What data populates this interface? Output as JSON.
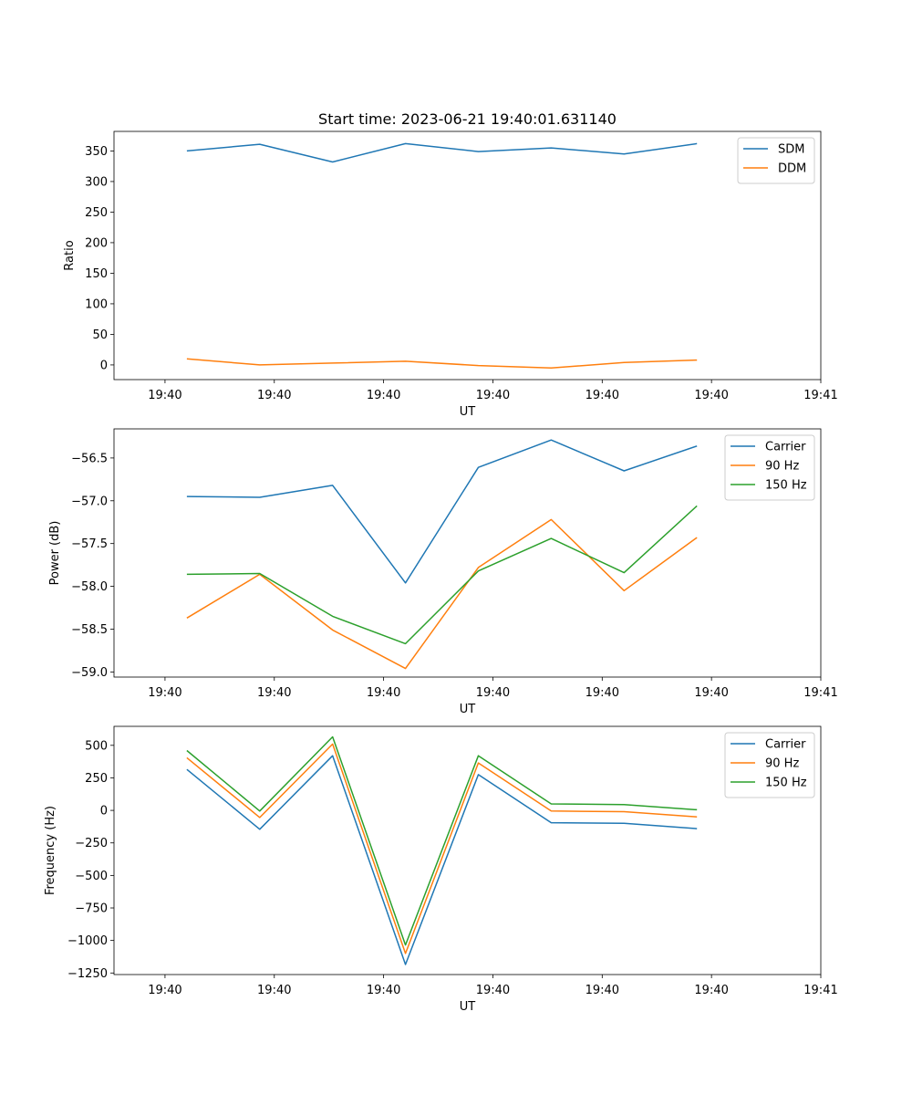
{
  "figure": {
    "title": "Start time: 2023-06-21 19:40:01.631140"
  },
  "chart_data": [
    {
      "type": "line",
      "title": "Start time: 2023-06-21 19:40:01.631140",
      "xlabel": "UT",
      "ylabel": "Ratio",
      "x": [
        1,
        2,
        3,
        4,
        5,
        6,
        7,
        8
      ],
      "xlim": [
        0,
        9.7
      ],
      "xticks": [
        0.7,
        2.2,
        3.7,
        5.2,
        6.7,
        8.2,
        9.7
      ],
      "xtick_labels": [
        "19:40",
        "19:40",
        "19:40",
        "19:40",
        "19:40",
        "19:40",
        "19:41"
      ],
      "ylim": [
        -24,
        382
      ],
      "yticks": [
        0,
        50,
        100,
        150,
        200,
        250,
        300,
        350
      ],
      "ytick_labels": [
        "0",
        "50",
        "100",
        "150",
        "200",
        "250",
        "300",
        "350"
      ],
      "legend_position": "top-right",
      "grid": false,
      "series": [
        {
          "name": "SDM",
          "color": "#1f77b4",
          "values": [
            350,
            361,
            332,
            362,
            349,
            355,
            345,
            362
          ]
        },
        {
          "name": "DDM",
          "color": "#ff7f0e",
          "values": [
            10,
            0,
            3,
            6,
            -1,
            -5,
            4,
            8
          ]
        }
      ]
    },
    {
      "type": "line",
      "xlabel": "UT",
      "ylabel": "Power (dB)",
      "x": [
        1,
        2,
        3,
        4,
        5,
        6,
        7,
        8
      ],
      "xlim": [
        0,
        9.7
      ],
      "xticks": [
        0.7,
        2.2,
        3.7,
        5.2,
        6.7,
        8.2,
        9.7
      ],
      "xtick_labels": [
        "19:40",
        "19:40",
        "19:40",
        "19:40",
        "19:40",
        "19:40",
        "19:41"
      ],
      "ylim": [
        -59.06,
        -56.16
      ],
      "yticks": [
        -59.0,
        -58.5,
        -58.0,
        -57.5,
        -57.0,
        -56.5
      ],
      "ytick_labels": [
        "−59.0",
        "−58.5",
        "−58.0",
        "−57.5",
        "−57.0",
        "−56.5"
      ],
      "legend_position": "top-right",
      "grid": false,
      "series": [
        {
          "name": "Carrier",
          "color": "#1f77b4",
          "values": [
            -56.95,
            -56.96,
            -56.82,
            -57.96,
            -56.61,
            -56.29,
            -56.65,
            -56.36
          ]
        },
        {
          "name": "90 Hz",
          "color": "#ff7f0e",
          "values": [
            -58.37,
            -57.86,
            -58.51,
            -58.96,
            -57.78,
            -57.22,
            -58.05,
            -57.43
          ]
        },
        {
          "name": "150 Hz",
          "color": "#2ca02c",
          "values": [
            -57.86,
            -57.85,
            -58.35,
            -58.67,
            -57.82,
            -57.44,
            -57.84,
            -57.06
          ]
        }
      ]
    },
    {
      "type": "line",
      "xlabel": "UT",
      "ylabel": "Frequency (Hz)",
      "x": [
        1,
        2,
        3,
        4,
        5,
        6,
        7,
        8
      ],
      "xlim": [
        0,
        9.7
      ],
      "xticks": [
        0.7,
        2.2,
        3.7,
        5.2,
        6.7,
        8.2,
        9.7
      ],
      "xtick_labels": [
        "19:40",
        "19:40",
        "19:40",
        "19:40",
        "19:40",
        "19:40",
        "19:41"
      ],
      "ylim": [
        -1262,
        646
      ],
      "yticks": [
        -1250,
        -1000,
        -750,
        -500,
        -250,
        0,
        250,
        500
      ],
      "ytick_labels": [
        "−1250",
        "−1000",
        "−750",
        "−500",
        "−250",
        "0",
        "250",
        "500"
      ],
      "legend_position": "top-right",
      "grid": false,
      "series": [
        {
          "name": "Carrier",
          "color": "#1f77b4",
          "values": [
            315,
            -145,
            420,
            -1185,
            275,
            -95,
            -100,
            -140
          ]
        },
        {
          "name": "90 Hz",
          "color": "#ff7f0e",
          "values": [
            405,
            -55,
            510,
            -1100,
            365,
            -5,
            -10,
            -50
          ]
        },
        {
          "name": "150 Hz",
          "color": "#2ca02c",
          "values": [
            460,
            -5,
            565,
            -1035,
            420,
            50,
            45,
            5
          ]
        }
      ]
    }
  ]
}
